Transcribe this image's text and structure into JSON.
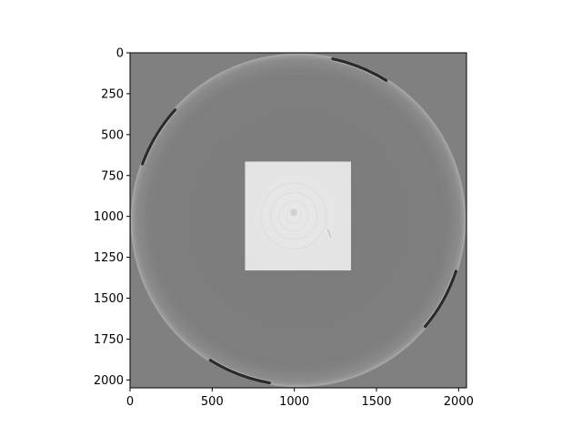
{
  "chart_data": {
    "type": "heatmap",
    "title": "",
    "xlabel": "",
    "ylabel": "",
    "colormap": "gray",
    "image_size": [
      2048,
      2048
    ],
    "xlim": [
      0,
      2048
    ],
    "ylim": [
      2048,
      0
    ],
    "x_ticks": [
      0,
      500,
      1000,
      1500,
      2000
    ],
    "y_ticks": [
      0,
      250,
      500,
      750,
      1000,
      1250,
      1500,
      1750,
      2000
    ],
    "x_tick_labels": [
      "0",
      "500",
      "1000",
      "1500",
      "2000"
    ],
    "y_tick_labels": [
      "0",
      "250",
      "500",
      "750",
      "1000",
      "1250",
      "1500",
      "1750",
      "2000"
    ],
    "content": {
      "background_color": "#808080",
      "disc": {
        "center": [
          1024,
          1024
        ],
        "radius": 1020,
        "color": "#7d7d7d",
        "rim_color": "#a6a6a6"
      },
      "square": {
        "x": [
          700,
          1345
        ],
        "y": [
          665,
          1330
        ],
        "color": "#e6e6e6"
      },
      "dark_arcs": [
        {
          "start_deg": -78,
          "end_deg": -58
        },
        {
          "start_deg": 200,
          "end_deg": 222
        },
        {
          "start_deg": 18,
          "end_deg": 40
        },
        {
          "start_deg": 100,
          "end_deg": 122
        }
      ]
    }
  }
}
